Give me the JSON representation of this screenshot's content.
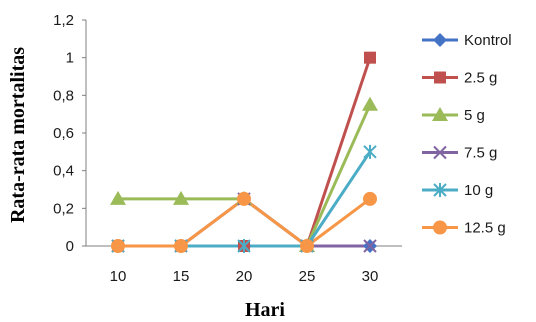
{
  "chart_data": {
    "type": "line",
    "title": "",
    "xlabel": "Hari",
    "ylabel": "Rata-rata mortalitas",
    "categories": [
      "10",
      "15",
      "20",
      "25",
      "30"
    ],
    "ylim": [
      0,
      1.2
    ],
    "y_ticks": [
      "0",
      "0,2",
      "0,4",
      "0,6",
      "0,8",
      "1",
      "1,2"
    ],
    "grid": false,
    "legend_position": "right",
    "series": [
      {
        "name": "Kontrol",
        "values": [
          0,
          0,
          0,
          0,
          0
        ],
        "color": "#4472C4",
        "marker": "diamond"
      },
      {
        "name": "2.5 g",
        "values": [
          0,
          0,
          0,
          0,
          1
        ],
        "color": "#C0504D",
        "marker": "square"
      },
      {
        "name": "5 g",
        "values": [
          0.25,
          0.25,
          0.25,
          0,
          0.75
        ],
        "color": "#9BBB59",
        "marker": "triangle"
      },
      {
        "name": "7.5 g",
        "values": [
          0,
          0,
          0.25,
          0,
          0
        ],
        "color": "#8064A2",
        "marker": "x"
      },
      {
        "name": "10 g",
        "values": [
          0,
          0,
          0,
          0,
          0.5
        ],
        "color": "#4BACC6",
        "marker": "star"
      },
      {
        "name": "12.5 g",
        "values": [
          0,
          0,
          0.25,
          0,
          0.25
        ],
        "color": "#F79646",
        "marker": "circle"
      }
    ]
  }
}
